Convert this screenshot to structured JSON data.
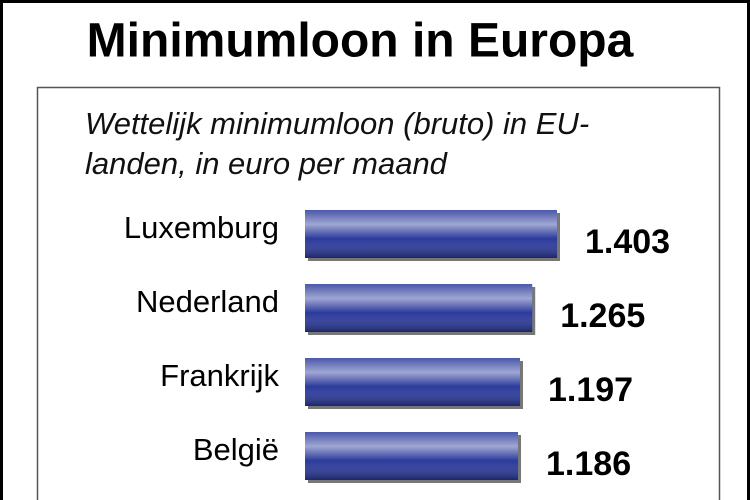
{
  "chart_data": {
    "type": "bar",
    "orientation": "horizontal",
    "title": "Minimumloon in Europa",
    "subtitle": "Wettelijk minimumloon (bruto) in EU-landen, in euro per maand",
    "categories": [
      "Luxemburg",
      "Nederland",
      "Frankrijk",
      "België"
    ],
    "values": [
      1403,
      1265,
      1197,
      1186
    ],
    "value_labels": [
      "1.403",
      "1.265",
      "1.197",
      "1.186"
    ],
    "color": "#2b3a9c"
  }
}
